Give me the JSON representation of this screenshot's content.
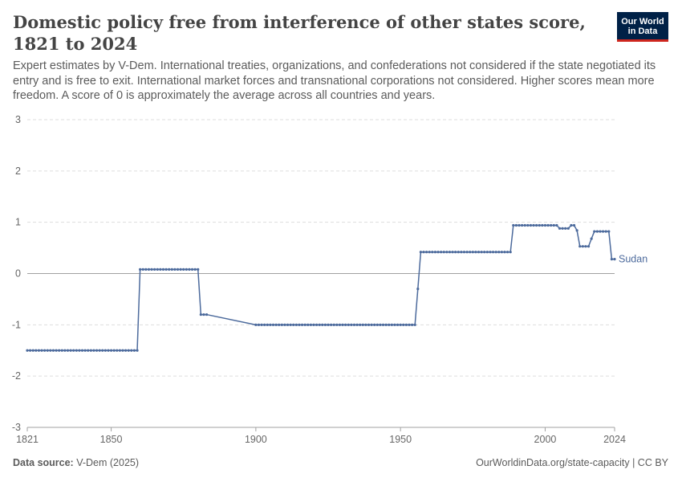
{
  "header": {
    "title": "Domestic policy free from interference of other states score, 1821 to 2024",
    "subtitle": "Expert estimates by V-Dem. International treaties, organizations, and confederations not considered if the state negotiated its entry and is free to exit. International market forces and transnational corporations not considered. Higher scores mean more freedom. A score of 0 is approximately the average across all countries and years.",
    "logo_line1": "Our World",
    "logo_line2": "in Data"
  },
  "footer": {
    "source_label": "Data source:",
    "source_value": "V-Dem (2025)",
    "right_text": "OurWorldinData.org/state-capacity | CC BY"
  },
  "colors": {
    "series": "#4c6a9c",
    "grid": "#dddddd",
    "zero_line": "#a1a1a1",
    "logo_bg": "#002147",
    "logo_accent": "#ce261e"
  },
  "chart_data": {
    "type": "line",
    "title": "Domestic policy free from interference of other states score, 1821 to 2024",
    "xlabel": "",
    "ylabel": "",
    "xlim": [
      1821,
      2024
    ],
    "ylim": [
      -3,
      3
    ],
    "x_ticks": [
      1821,
      1850,
      1900,
      1950,
      2000,
      2024
    ],
    "y_ticks": [
      3,
      2,
      1,
      0,
      -1,
      -2,
      -3
    ],
    "grid": "horizontal dashed",
    "legend": "inline label at line end",
    "series": [
      {
        "name": "Sudan",
        "segments": [
          {
            "x_start": 1821,
            "x_end": 1859,
            "y": -1.5
          },
          {
            "x_start": 1860,
            "x_end": 1880,
            "y": 0.08
          },
          {
            "x_start": 1881,
            "x_end": 1883,
            "y": -0.8
          },
          {
            "x_start": 1900,
            "x_end": 1955,
            "y": -1.0
          },
          {
            "x_start": 1956,
            "x_end": 1956,
            "y": -0.3
          },
          {
            "x_start": 1957,
            "x_end": 1988,
            "y": 0.42
          },
          {
            "x_start": 1989,
            "x_end": 2004,
            "y": 0.94
          },
          {
            "x_start": 2005,
            "x_end": 2008,
            "y": 0.88
          },
          {
            "x_start": 2009,
            "x_end": 2010,
            "y": 0.94
          },
          {
            "x_start": 2011,
            "x_end": 2011,
            "y": 0.84
          },
          {
            "x_start": 2012,
            "x_end": 2015,
            "y": 0.53
          },
          {
            "x_start": 2016,
            "x_end": 2016,
            "y": 0.68
          },
          {
            "x_start": 2017,
            "x_end": 2022,
            "y": 0.82
          },
          {
            "x_start": 2023,
            "x_end": 2024,
            "y": 0.28
          }
        ]
      }
    ]
  }
}
